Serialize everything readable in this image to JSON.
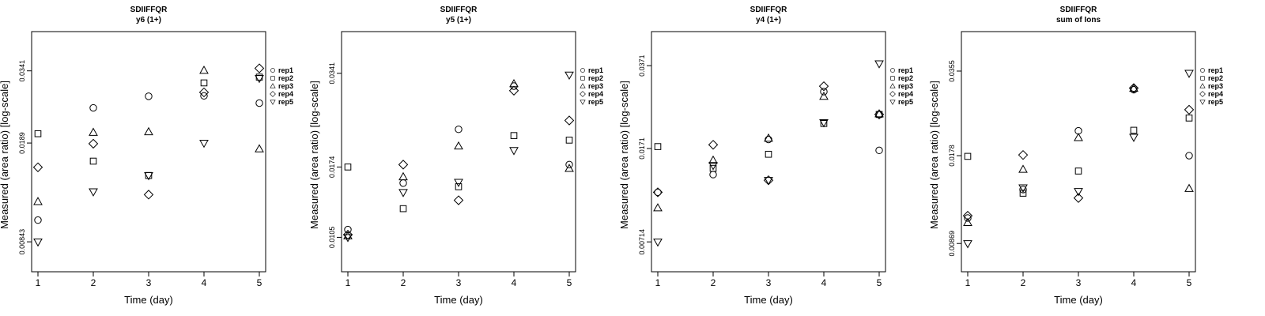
{
  "series_names": [
    "rep1",
    "rep2",
    "rep3",
    "rep4",
    "rep5"
  ],
  "chart_data": [
    {
      "type": "scatter",
      "title": "SDIIFFQR",
      "subtitle": "y6 (1+)",
      "xlabel": "Time (day)",
      "ylabel": "Measured (area ratio) [log-scale]",
      "log_y": true,
      "x_ticks": [
        "1",
        "2",
        "3",
        "4",
        "5"
      ],
      "y_tick_values": [
        0.00843,
        0.0189,
        0.0341
      ],
      "y_tick_labels": [
        "0.00843",
        "0.0189",
        "0.0341"
      ],
      "ylim": [
        0.0066,
        0.047
      ],
      "legend": "right",
      "x": [
        1,
        2,
        3,
        4,
        5
      ],
      "series": [
        {
          "name": "rep1",
          "marker": "circle",
          "values": [
            0.01007,
            0.0252,
            0.0277,
            0.0278,
            0.0262
          ]
        },
        {
          "name": "rep2",
          "marker": "square",
          "values": [
            0.0204,
            0.0163,
            0.0145,
            0.0309,
            0.0324
          ]
        },
        {
          "name": "rep3",
          "marker": "triangle-up",
          "values": [
            0.0117,
            0.0206,
            0.0207,
            0.0342,
            0.018
          ]
        },
        {
          "name": "rep4",
          "marker": "diamond",
          "values": [
            0.0155,
            0.0188,
            0.0124,
            0.0286,
            0.0348
          ]
        },
        {
          "name": "rep5",
          "marker": "triangle-down",
          "values": [
            0.00843,
            0.0127,
            0.0145,
            0.0189,
            0.0321
          ]
        }
      ]
    },
    {
      "type": "scatter",
      "title": "SDIIFFQR",
      "subtitle": "y5 (1+)",
      "xlabel": "Time (day)",
      "ylabel": "Measured (area ratio) [log-scale]",
      "log_y": true,
      "x_ticks": [
        "1",
        "2",
        "3",
        "4",
        "5"
      ],
      "y_tick_values": [
        0.0105,
        0.0174,
        0.0341
      ],
      "y_tick_labels": [
        "0.0105",
        "0.0174",
        "0.0341"
      ],
      "ylim": [
        0.0082,
        0.046
      ],
      "legend": "right",
      "x": [
        1,
        2,
        3,
        4,
        5
      ],
      "series": [
        {
          "name": "rep1",
          "marker": "circle",
          "values": [
            0.0111,
            0.0155,
            0.0228,
            0.0311,
            0.0177
          ]
        },
        {
          "name": "rep2",
          "marker": "square",
          "values": [
            0.0174,
            0.0129,
            0.0151,
            0.0218,
            0.0211
          ]
        },
        {
          "name": "rep3",
          "marker": "triangle-up",
          "values": [
            0.0106,
            0.0162,
            0.0202,
            0.0316,
            0.0172
          ]
        },
        {
          "name": "rep4",
          "marker": "diamond",
          "values": [
            0.0107,
            0.0177,
            0.0137,
            0.0301,
            0.0243
          ]
        },
        {
          "name": "rep5",
          "marker": "triangle-down",
          "values": [
            0.0105,
            0.0145,
            0.0156,
            0.0196,
            0.0337
          ]
        }
      ]
    },
    {
      "type": "scatter",
      "title": "SDIIFFQR",
      "subtitle": "y4 (1+)",
      "xlabel": "Time (day)",
      "ylabel": "Measured (area ratio) [log-scale]",
      "log_y": true,
      "x_ticks": [
        "1",
        "2",
        "3",
        "4",
        "5"
      ],
      "y_tick_values": [
        0.00714,
        0.0171,
        0.0371
      ],
      "y_tick_labels": [
        "0.00714",
        "0.0171",
        "0.0371"
      ],
      "ylim": [
        0.0054,
        0.051
      ],
      "legend": "right",
      "x": [
        1,
        2,
        3,
        4,
        5
      ],
      "series": [
        {
          "name": "rep1",
          "marker": "circle",
          "values": [
            0.01135,
            0.0134,
            0.0186,
            0.0291,
            0.0168
          ]
        },
        {
          "name": "rep2",
          "marker": "square",
          "values": [
            0.0174,
            0.0142,
            0.0162,
            0.0216,
            0.0235
          ]
        },
        {
          "name": "rep3",
          "marker": "triangle-up",
          "values": [
            0.0098,
            0.0153,
            0.0188,
            0.0278,
            0.0236
          ]
        },
        {
          "name": "rep4",
          "marker": "diamond",
          "values": [
            0.01135,
            0.0177,
            0.0127,
            0.0306,
            0.0235
          ]
        },
        {
          "name": "rep5",
          "marker": "triangle-down",
          "values": [
            0.00714,
            0.0146,
            0.0127,
            0.0218,
            0.0378
          ]
        }
      ]
    },
    {
      "type": "scatter",
      "title": "SDIIFFQR",
      "subtitle": "sum of Ions",
      "xlabel": "Time (day)",
      "ylabel": "Measured (area ratio) [log-scale]",
      "log_y": true,
      "x_ticks": [
        "1",
        "2",
        "3",
        "4",
        "5"
      ],
      "y_tick_values": [
        0.00869,
        0.0178,
        0.0355
      ],
      "y_tick_labels": [
        "0.00869",
        "0.0178",
        "0.0355"
      ],
      "ylim": [
        0.0069,
        0.049
      ],
      "legend": "right",
      "x": [
        1,
        2,
        3,
        4,
        5
      ],
      "series": [
        {
          "name": "rep1",
          "marker": "circle",
          "values": [
            0.0107,
            0.0135,
            0.0218,
            0.0305,
            0.0178
          ]
        },
        {
          "name": "rep2",
          "marker": "square",
          "values": [
            0.0177,
            0.0131,
            0.0157,
            0.0219,
            0.0242
          ]
        },
        {
          "name": "rep3",
          "marker": "triangle-up",
          "values": [
            0.0103,
            0.0159,
            0.0206,
            0.0308,
            0.0136
          ]
        },
        {
          "name": "rep4",
          "marker": "diamond",
          "values": [
            0.0109,
            0.0179,
            0.0126,
            0.0309,
            0.0259
          ]
        },
        {
          "name": "rep5",
          "marker": "triangle-down",
          "values": [
            0.00869,
            0.0137,
            0.0133,
            0.0207,
            0.0349
          ]
        }
      ]
    }
  ]
}
